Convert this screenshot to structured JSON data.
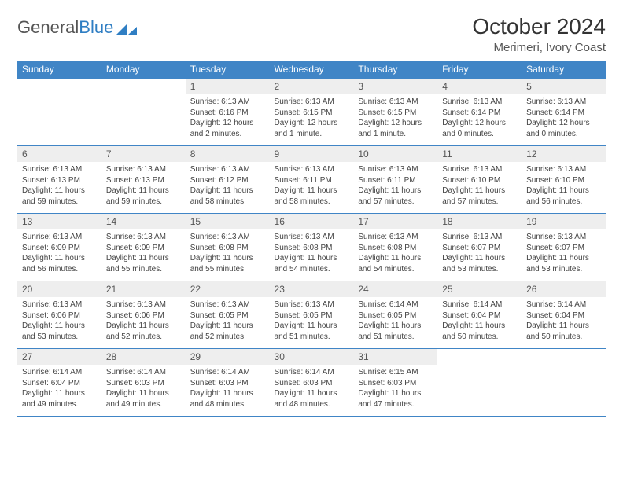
{
  "logo": {
    "part1": "General",
    "part2": "Blue"
  },
  "title": {
    "month": "October 2024",
    "location": "Merimeri, Ivory Coast"
  },
  "dayNames": [
    "Sunday",
    "Monday",
    "Tuesday",
    "Wednesday",
    "Thursday",
    "Friday",
    "Saturday"
  ],
  "colors": {
    "header_bg": "#4085c6",
    "header_text": "#ffffff",
    "daynum_bg": "#eeeeee",
    "border": "#4085c6",
    "logo_blue": "#2f7ec3"
  },
  "weeks": [
    [
      {
        "empty": true
      },
      {
        "empty": true
      },
      {
        "n": "1",
        "sunrise": "Sunrise: 6:13 AM",
        "sunset": "Sunset: 6:16 PM",
        "daylight": "Daylight: 12 hours and 2 minutes."
      },
      {
        "n": "2",
        "sunrise": "Sunrise: 6:13 AM",
        "sunset": "Sunset: 6:15 PM",
        "daylight": "Daylight: 12 hours and 1 minute."
      },
      {
        "n": "3",
        "sunrise": "Sunrise: 6:13 AM",
        "sunset": "Sunset: 6:15 PM",
        "daylight": "Daylight: 12 hours and 1 minute."
      },
      {
        "n": "4",
        "sunrise": "Sunrise: 6:13 AM",
        "sunset": "Sunset: 6:14 PM",
        "daylight": "Daylight: 12 hours and 0 minutes."
      },
      {
        "n": "5",
        "sunrise": "Sunrise: 6:13 AM",
        "sunset": "Sunset: 6:14 PM",
        "daylight": "Daylight: 12 hours and 0 minutes."
      }
    ],
    [
      {
        "n": "6",
        "sunrise": "Sunrise: 6:13 AM",
        "sunset": "Sunset: 6:13 PM",
        "daylight": "Daylight: 11 hours and 59 minutes."
      },
      {
        "n": "7",
        "sunrise": "Sunrise: 6:13 AM",
        "sunset": "Sunset: 6:13 PM",
        "daylight": "Daylight: 11 hours and 59 minutes."
      },
      {
        "n": "8",
        "sunrise": "Sunrise: 6:13 AM",
        "sunset": "Sunset: 6:12 PM",
        "daylight": "Daylight: 11 hours and 58 minutes."
      },
      {
        "n": "9",
        "sunrise": "Sunrise: 6:13 AM",
        "sunset": "Sunset: 6:11 PM",
        "daylight": "Daylight: 11 hours and 58 minutes."
      },
      {
        "n": "10",
        "sunrise": "Sunrise: 6:13 AM",
        "sunset": "Sunset: 6:11 PM",
        "daylight": "Daylight: 11 hours and 57 minutes."
      },
      {
        "n": "11",
        "sunrise": "Sunrise: 6:13 AM",
        "sunset": "Sunset: 6:10 PM",
        "daylight": "Daylight: 11 hours and 57 minutes."
      },
      {
        "n": "12",
        "sunrise": "Sunrise: 6:13 AM",
        "sunset": "Sunset: 6:10 PM",
        "daylight": "Daylight: 11 hours and 56 minutes."
      }
    ],
    [
      {
        "n": "13",
        "sunrise": "Sunrise: 6:13 AM",
        "sunset": "Sunset: 6:09 PM",
        "daylight": "Daylight: 11 hours and 56 minutes."
      },
      {
        "n": "14",
        "sunrise": "Sunrise: 6:13 AM",
        "sunset": "Sunset: 6:09 PM",
        "daylight": "Daylight: 11 hours and 55 minutes."
      },
      {
        "n": "15",
        "sunrise": "Sunrise: 6:13 AM",
        "sunset": "Sunset: 6:08 PM",
        "daylight": "Daylight: 11 hours and 55 minutes."
      },
      {
        "n": "16",
        "sunrise": "Sunrise: 6:13 AM",
        "sunset": "Sunset: 6:08 PM",
        "daylight": "Daylight: 11 hours and 54 minutes."
      },
      {
        "n": "17",
        "sunrise": "Sunrise: 6:13 AM",
        "sunset": "Sunset: 6:08 PM",
        "daylight": "Daylight: 11 hours and 54 minutes."
      },
      {
        "n": "18",
        "sunrise": "Sunrise: 6:13 AM",
        "sunset": "Sunset: 6:07 PM",
        "daylight": "Daylight: 11 hours and 53 minutes."
      },
      {
        "n": "19",
        "sunrise": "Sunrise: 6:13 AM",
        "sunset": "Sunset: 6:07 PM",
        "daylight": "Daylight: 11 hours and 53 minutes."
      }
    ],
    [
      {
        "n": "20",
        "sunrise": "Sunrise: 6:13 AM",
        "sunset": "Sunset: 6:06 PM",
        "daylight": "Daylight: 11 hours and 53 minutes."
      },
      {
        "n": "21",
        "sunrise": "Sunrise: 6:13 AM",
        "sunset": "Sunset: 6:06 PM",
        "daylight": "Daylight: 11 hours and 52 minutes."
      },
      {
        "n": "22",
        "sunrise": "Sunrise: 6:13 AM",
        "sunset": "Sunset: 6:05 PM",
        "daylight": "Daylight: 11 hours and 52 minutes."
      },
      {
        "n": "23",
        "sunrise": "Sunrise: 6:13 AM",
        "sunset": "Sunset: 6:05 PM",
        "daylight": "Daylight: 11 hours and 51 minutes."
      },
      {
        "n": "24",
        "sunrise": "Sunrise: 6:14 AM",
        "sunset": "Sunset: 6:05 PM",
        "daylight": "Daylight: 11 hours and 51 minutes."
      },
      {
        "n": "25",
        "sunrise": "Sunrise: 6:14 AM",
        "sunset": "Sunset: 6:04 PM",
        "daylight": "Daylight: 11 hours and 50 minutes."
      },
      {
        "n": "26",
        "sunrise": "Sunrise: 6:14 AM",
        "sunset": "Sunset: 6:04 PM",
        "daylight": "Daylight: 11 hours and 50 minutes."
      }
    ],
    [
      {
        "n": "27",
        "sunrise": "Sunrise: 6:14 AM",
        "sunset": "Sunset: 6:04 PM",
        "daylight": "Daylight: 11 hours and 49 minutes."
      },
      {
        "n": "28",
        "sunrise": "Sunrise: 6:14 AM",
        "sunset": "Sunset: 6:03 PM",
        "daylight": "Daylight: 11 hours and 49 minutes."
      },
      {
        "n": "29",
        "sunrise": "Sunrise: 6:14 AM",
        "sunset": "Sunset: 6:03 PM",
        "daylight": "Daylight: 11 hours and 48 minutes."
      },
      {
        "n": "30",
        "sunrise": "Sunrise: 6:14 AM",
        "sunset": "Sunset: 6:03 PM",
        "daylight": "Daylight: 11 hours and 48 minutes."
      },
      {
        "n": "31",
        "sunrise": "Sunrise: 6:15 AM",
        "sunset": "Sunset: 6:03 PM",
        "daylight": "Daylight: 11 hours and 47 minutes."
      },
      {
        "empty": true
      },
      {
        "empty": true
      }
    ]
  ]
}
